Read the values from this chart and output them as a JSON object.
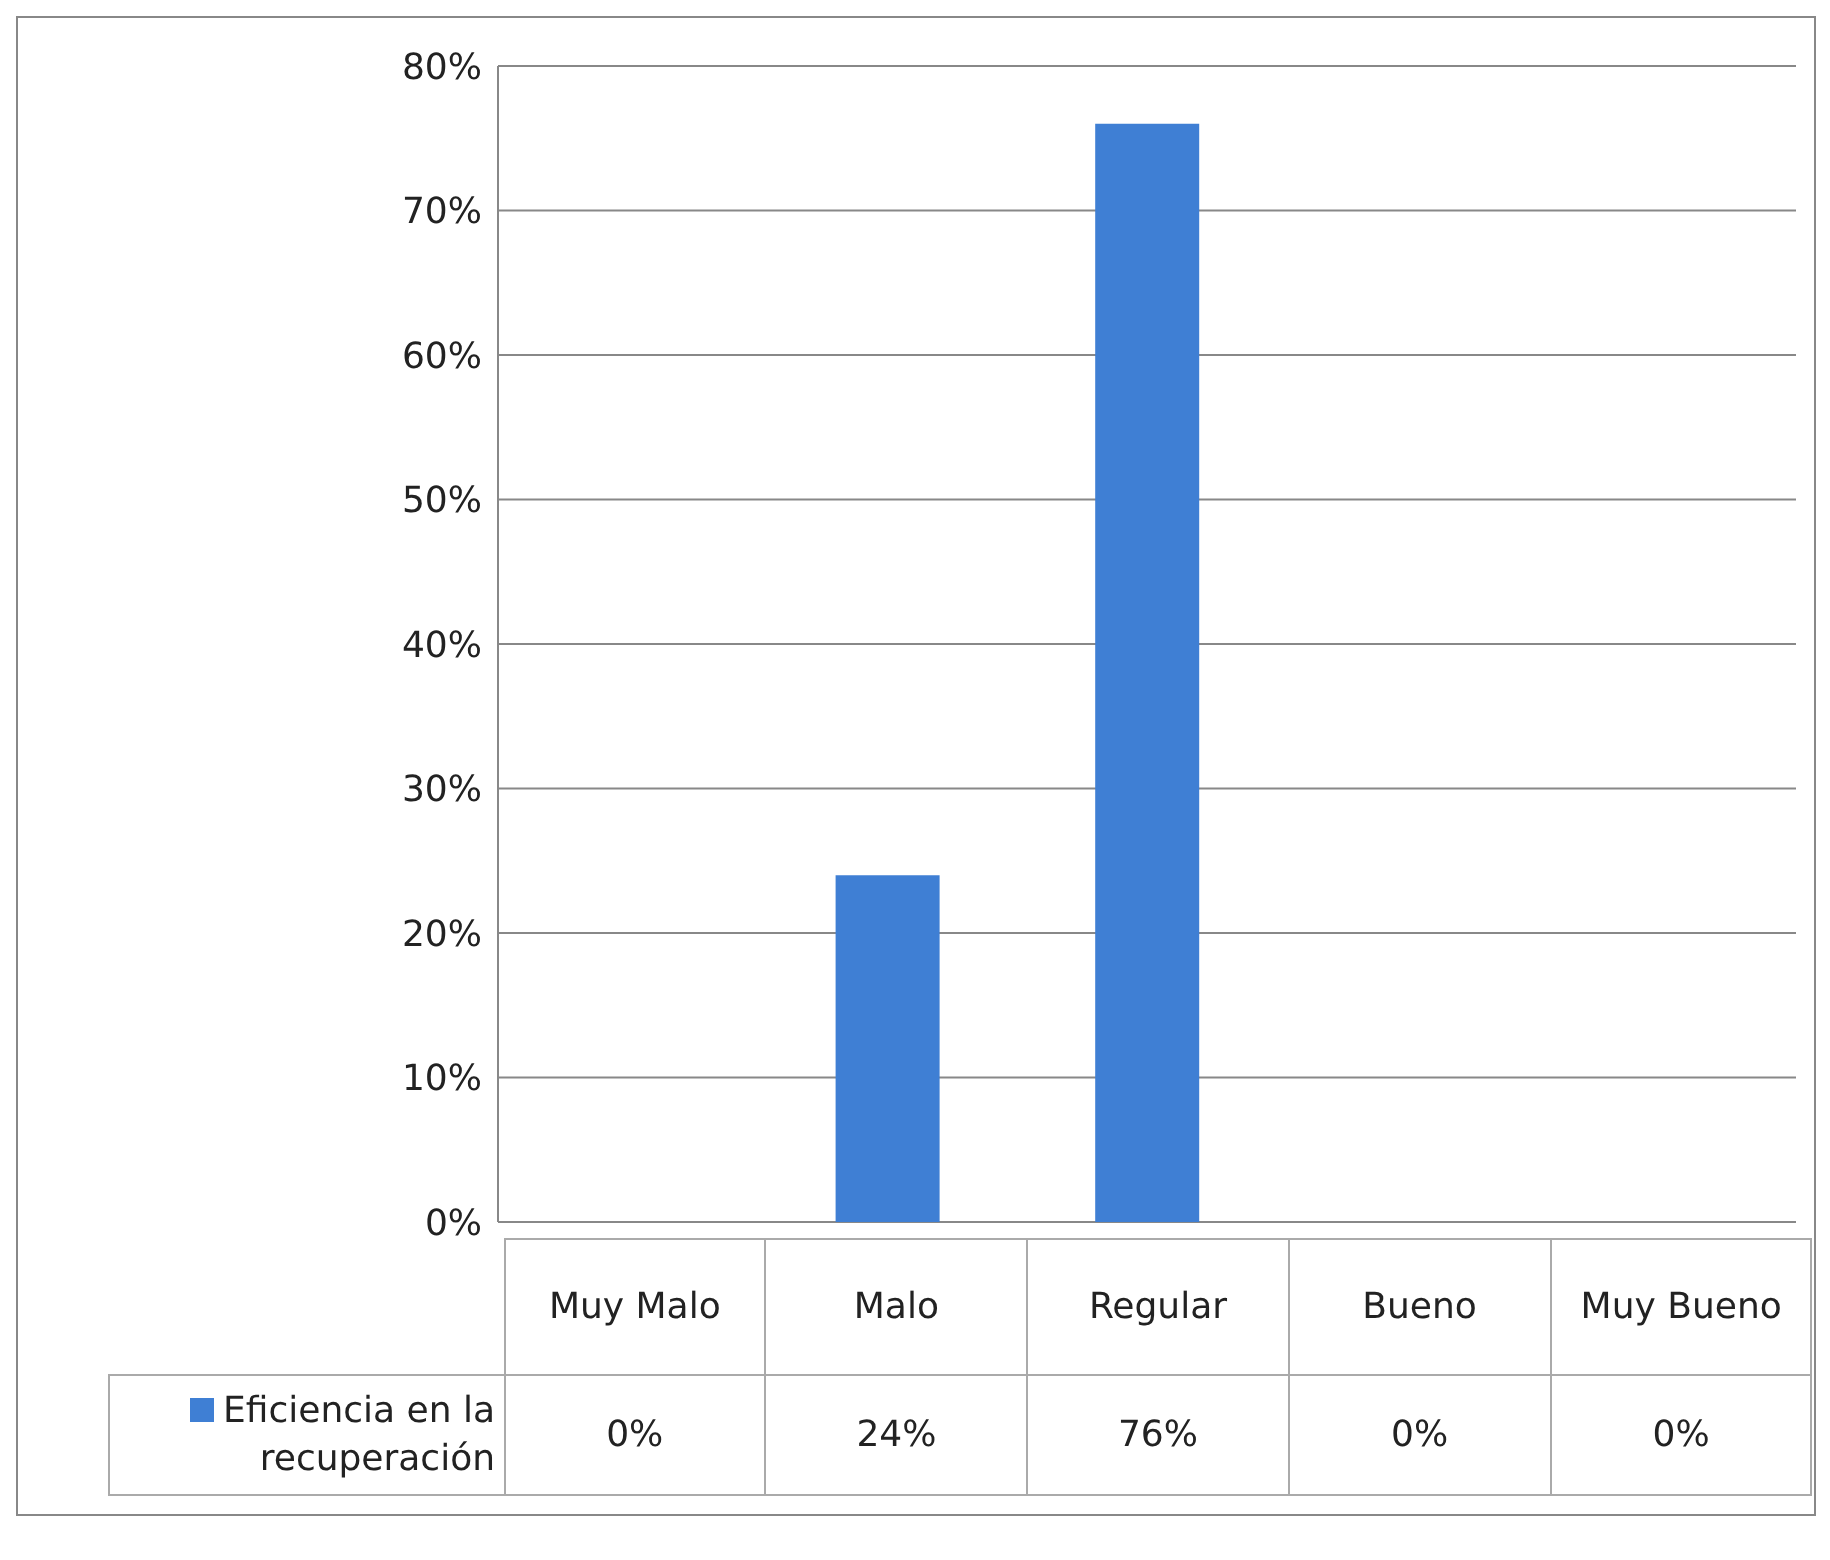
{
  "chart_data": {
    "type": "bar",
    "categories": [
      "Muy Malo",
      "Malo",
      "Regular",
      "Bueno",
      "Muy Bueno"
    ],
    "series": [
      {
        "name": "Eficiencia en la recuperación",
        "color": "#3f7fd4",
        "values": [
          0,
          24,
          76,
          0,
          0
        ],
        "value_labels": [
          "0%",
          "24%",
          "76%",
          "0%",
          "0%"
        ]
      }
    ],
    "ylim": [
      0,
      80
    ],
    "yticks": [
      {
        "value": 0,
        "label": "0%"
      },
      {
        "value": 10,
        "label": "10%"
      },
      {
        "value": 20,
        "label": "20%"
      },
      {
        "value": 30,
        "label": "30%"
      },
      {
        "value": 40,
        "label": "40%"
      },
      {
        "value": 50,
        "label": "50%"
      },
      {
        "value": 60,
        "label": "60%"
      },
      {
        "value": 70,
        "label": "70%"
      },
      {
        "value": 80,
        "label": "80%"
      }
    ],
    "grid": "y",
    "legend": "bottom"
  }
}
